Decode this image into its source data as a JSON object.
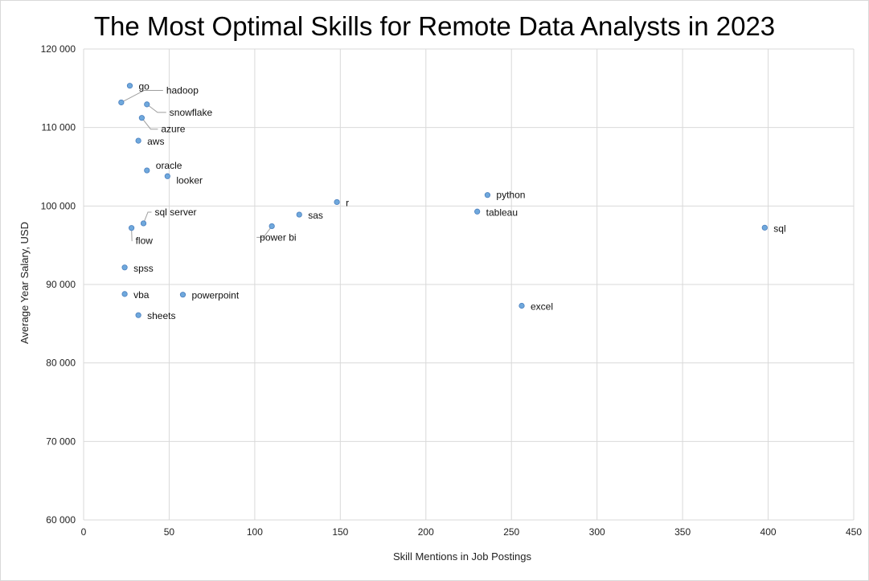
{
  "chart_data": {
    "type": "scatter",
    "title": "The Most Optimal Skills for Remote Data Analysts in 2023",
    "xlabel": "Skill Mentions in Job Postings",
    "ylabel": "Average Year Salary, USD",
    "xlim": [
      0,
      450
    ],
    "ylim": [
      60000,
      120000
    ],
    "x_ticks": [
      0,
      50,
      100,
      150,
      200,
      250,
      300,
      350,
      400,
      450
    ],
    "y_ticks": [
      60000,
      70000,
      80000,
      90000,
      100000,
      110000,
      120000
    ],
    "y_tick_labels": [
      "60 000",
      "70 000",
      "80 000",
      "90 000",
      "100 000",
      "110 000",
      "120 000"
    ],
    "grid": true,
    "point_color": "#6fa8dc",
    "points": [
      {
        "label": "go",
        "x": 27,
        "y": 115320
      },
      {
        "label": "hadoop",
        "x": 22,
        "y": 113193
      },
      {
        "label": "snowflake",
        "x": 37,
        "y": 112948
      },
      {
        "label": "azure",
        "x": 34,
        "y": 111225
      },
      {
        "label": "aws",
        "x": 32,
        "y": 108317
      },
      {
        "label": "oracle",
        "x": 37,
        "y": 104534
      },
      {
        "label": "looker",
        "x": 49,
        "y": 103795
      },
      {
        "label": "r",
        "x": 148,
        "y": 100499
      },
      {
        "label": "python",
        "x": 236,
        "y": 101397
      },
      {
        "label": "tableau",
        "x": 230,
        "y": 99288
      },
      {
        "label": "sas",
        "x": 126,
        "y": 98902
      },
      {
        "label": "sql server",
        "x": 35,
        "y": 97786
      },
      {
        "label": "power bi",
        "x": 110,
        "y": 97431
      },
      {
        "label": "sql",
        "x": 398,
        "y": 97237
      },
      {
        "label": "flow",
        "x": 28,
        "y": 97200
      },
      {
        "label": "spss",
        "x": 24,
        "y": 92170
      },
      {
        "label": "vba",
        "x": 24,
        "y": 88783
      },
      {
        "label": "powerpoint",
        "x": 58,
        "y": 88701
      },
      {
        "label": "excel",
        "x": 256,
        "y": 87288
      },
      {
        "label": "sheets",
        "x": 32,
        "y": 86088
      }
    ]
  }
}
